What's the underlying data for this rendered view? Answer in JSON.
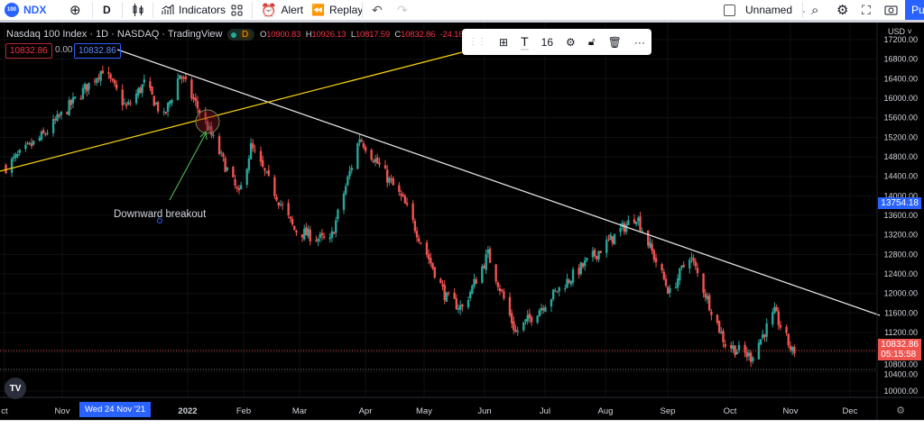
{
  "toolbar": {
    "symbol_badge": "100",
    "symbol": "NDX",
    "interval": "D",
    "indicators": "Indicators",
    "alert": "Alert",
    "replay": "Replay",
    "layout_name": "Unnamed",
    "publish": "Pu"
  },
  "legend": {
    "title": "Nasdaq 100 Index · 1D · NASDAQ · TradingView",
    "market_badge": "D",
    "o_label": "O",
    "o": "10900.83",
    "h_label": "H",
    "h": "10926.13",
    "l_label": "L",
    "l": "10817.59",
    "c_label": "C",
    "c": "10832.86",
    "change": "-24.16",
    "bid": "10832.86",
    "spread": "0.00",
    "ask": "10832.86"
  },
  "float_toolbar": {
    "font_size": "16"
  },
  "price_axis": {
    "currency": "USD",
    "ticks": [
      "17200.00",
      "16800.00",
      "16400.00",
      "16000.00",
      "15600.00",
      "15200.00",
      "14800.00",
      "14400.00",
      "14000.00",
      "13600.00",
      "13200.00",
      "12800.00",
      "12400.00",
      "12000.00",
      "11600.00",
      "11200.00",
      "10800.00",
      "10400.00",
      "10000.00"
    ],
    "trendline_price": "13754.18",
    "last_price": "10832.86",
    "countdown": "05:15:58"
  },
  "time_axis": {
    "labels": [
      "ct",
      "Nov",
      "2022",
      "Feb",
      "Mar",
      "Apr",
      "May",
      "Jun",
      "Jul",
      "Aug",
      "Sep",
      "Oct",
      "Nov",
      "Dec"
    ],
    "crosshair_label": "Wed 24 Nov '21"
  },
  "annotation": {
    "text": "Downward breakout"
  },
  "colors": {
    "up": "#26a69a",
    "down": "#ef5350",
    "trendline": "#e0e0e0",
    "support_line": "#f5d10b",
    "arrow": "#4caf50",
    "accent": "#2962ff"
  },
  "chart_data": {
    "type": "candlestick",
    "symbol": "NDX",
    "price_path": [
      [
        "2021-10-01",
        14600
      ],
      [
        "2021-10-20",
        15240
      ],
      [
        "2021-11-19",
        16600
      ],
      [
        "2021-12-01",
        15800
      ],
      [
        "2021-12-10",
        16300
      ],
      [
        "2021-12-20",
        15600
      ],
      [
        "2021-12-28",
        16500
      ],
      [
        "2022-01-10",
        15500
      ],
      [
        "2022-01-27",
        14000
      ],
      [
        "2022-02-02",
        15000
      ],
      [
        "2022-02-24",
        13300
      ],
      [
        "2022-03-14",
        13050
      ],
      [
        "2022-03-29",
        15200
      ],
      [
        "2022-04-20",
        13900
      ],
      [
        "2022-05-12",
        11900
      ],
      [
        "2022-05-20",
        11700
      ],
      [
        "2022-06-02",
        12800
      ],
      [
        "2022-06-16",
        11200
      ],
      [
        "2022-07-08",
        12100
      ],
      [
        "2022-08-16",
        13600
      ],
      [
        "2022-09-02",
        12000
      ],
      [
        "2022-09-12",
        12800
      ],
      [
        "2022-09-30",
        10970
      ],
      [
        "2022-10-13",
        10700
      ],
      [
        "2022-10-25",
        11600
      ],
      [
        "2022-11-03",
        10800
      ],
      [
        "2022-11-04",
        10832.86
      ]
    ]
  }
}
